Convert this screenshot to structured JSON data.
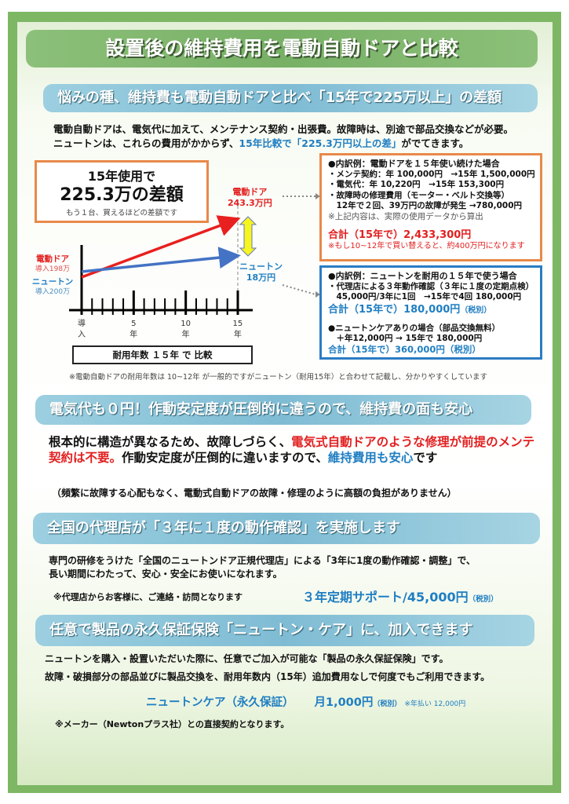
{
  "title": "設置後の維持費用を電動自動ドアと比較",
  "section1": {
    "heading": "悩みの種、維持費も電動自動ドアと比べ「15年で225万以上」の差額",
    "line1": "電動自動ドアは、電気代に加えて、メンテナンス契約・出張費。故障時は、別途で部品交換などが必要。",
    "line2_a": "ニュートンは、これらの費用がかからず、",
    "line2_b": "15年比較で「225.3万円以上の差」",
    "line2_c": "がでてきます。",
    "summary": {
      "l1": "15年使用で",
      "l2": "225.3万の差額",
      "l3": "もう１台、買えるほどの差額です"
    },
    "diagram": {
      "electric_label": "電動ドア",
      "electric_start": "導入198万",
      "newton_label": "ニュートン",
      "newton_start": "導入200万",
      "electric_end_label": "電動ドア",
      "electric_end_value": "243.3万円",
      "newton_end_label": "ニュートン",
      "newton_end_value": "18万円",
      "ticks": [
        {
          "a": "導",
          "b": "入"
        },
        {
          "a": "5",
          "b": "年"
        },
        {
          "a": "10",
          "b": "年"
        },
        {
          "a": "15",
          "b": "年"
        }
      ],
      "caption": "耐用年数 １５年 で 比較",
      "colors": {
        "electric": "#e8201f",
        "newton": "#4472c4",
        "gap_arrow": "#f5f520"
      }
    },
    "electric_box": {
      "heading": "●内訳例：電動ドアを１５年使い続けた場合",
      "items": [
        "・メンテ契約：年 100,000円　→15年 1,500,000円",
        "・電気代：年 10,220円　→15年 153,300円",
        "・故障時の修理費用（モーター・ベルト交換等）",
        "　12年で２回、39万円の故障が発生 →780,000円"
      ],
      "note": "※上記内容は、実際の使用データから算出",
      "total": "合計（15年で）2,433,300円",
      "total_note": "※もし10~12年で買い替えると、約400万円になります"
    },
    "newton_box": {
      "heading": "●内訳例：ニュートンを耐用の１５年で使う場合",
      "items": [
        "・代理店による３年動作確認（３年に１度の定期点検）",
        "　45,000円/3年に1回　→15年で4回 180,000円"
      ],
      "total": "合計（15年で）180,000円",
      "total_tax": "（税別）",
      "care_heading": "●ニュートンケアありの場合（部品交換無料）",
      "care_item": "　＋年12,000円 → 15年で 180,000円",
      "care_total": "合計（15年で）360,000円（税別）"
    },
    "footnote": "※電動自動ドアの耐用年数は 10~12年 が一般的ですがニュートン（耐用15年）と合わせて記載し、分かりやすくしています"
  },
  "section2": {
    "heading": "電気代も０円！作動安定度が圧倒的に違うので、維持費の面も安心",
    "a": "根本的に構造が異なるため、故障しづらく、",
    "b": "電気式自動ドアのような修理が前提のメンテ契約は不要。",
    "c": "作動安定度が圧倒的に違いますので、",
    "d": "維持費用も安心",
    "e": "です",
    "note": "（頻繁に故障する心配もなく、電動式自動ドアの故障・修理のように高額の負担がありません）"
  },
  "section3": {
    "heading": "全国の代理店が「３年に１度の動作確認」を実施します",
    "line1": "専門の研修をうけた「全国のニュートンドア正規代理店」による「3年に1度の動作確認・調整」で、",
    "line2": "長い期間にわたって、安心・安全にお使いになれます。",
    "note": "※代理店からお客様に、ご連絡・訪問となります",
    "price": "３年定期サポート/45,000円",
    "tax": "（税別）"
  },
  "section4": {
    "heading": "任意で製品の永久保証保険「ニュートン・ケア」に、加入できます",
    "line1": "ニュートンを購入・設置いただいた際に、任意でご加入が可能な「製品の永久保証保険」です。",
    "line2": "故障・破損部分の部品並びに製品交換を、耐用年数内（15年）追加費用なしで何度でもご利用できます。",
    "plan": "ニュートンケア（永久保証）",
    "price": "月1,000円",
    "tax": "（税別）",
    "annual": "※年払い 12,000円",
    "note": "※メーカー（Newtonプラス社）との直接契約となります。"
  }
}
